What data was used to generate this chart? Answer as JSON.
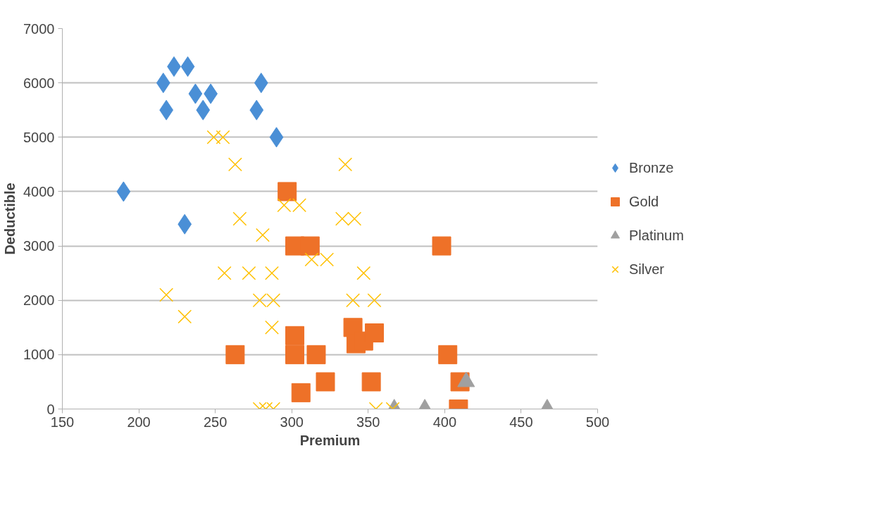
{
  "chart_data": {
    "type": "scatter",
    "xlabel": "Premium",
    "ylabel": "Deductible",
    "xlim": [
      150,
      500
    ],
    "xticks": [
      150,
      200,
      250,
      300,
      350,
      400,
      450,
      500
    ],
    "ylim": [
      0,
      7000
    ],
    "yticks": [
      0,
      1000,
      2000,
      3000,
      4000,
      5000,
      6000,
      7000
    ],
    "grid": "y",
    "legend": "right",
    "series": [
      {
        "name": "Bronze",
        "color": "#4a8fd6",
        "marker": "diamond",
        "x": [
          223,
          232,
          216,
          280,
          237,
          247,
          218,
          242,
          277,
          290,
          190,
          230
        ],
        "values": [
          6300,
          6300,
          6000,
          6000,
          5800,
          5800,
          5500,
          5500,
          5500,
          5000,
          4000,
          3400
        ]
      },
      {
        "name": "Gold",
        "color": "#ee7128",
        "marker": "square",
        "x": [
          297,
          302,
          312,
          398,
          302,
          263,
          302,
          316,
          306,
          322,
          352,
          340,
          342,
          347,
          354,
          402,
          410,
          409
        ],
        "values": [
          4000,
          3000,
          3000,
          3000,
          1350,
          1000,
          1000,
          1000,
          300,
          500,
          500,
          1500,
          1200,
          1250,
          1400,
          1000,
          500,
          0
        ]
      },
      {
        "name": "Platinum",
        "color": "#a0a0a0",
        "marker": "triangle",
        "x": [
          414,
          367,
          387,
          467
        ],
        "values": [
          500,
          0,
          0,
          0
        ]
      },
      {
        "name": "Silver",
        "color": "#ffc000",
        "marker": "cross",
        "x": [
          249,
          255,
          263,
          335,
          295,
          305,
          266,
          333,
          341,
          281,
          313,
          323,
          256,
          272,
          287,
          347,
          218,
          279,
          288,
          340,
          354,
          230,
          287,
          279,
          283,
          288,
          355,
          366
        ],
        "values": [
          5000,
          5000,
          4500,
          4500,
          3750,
          3750,
          3500,
          3500,
          3500,
          3200,
          2750,
          2750,
          2500,
          2500,
          2500,
          2500,
          2100,
          2000,
          2000,
          2000,
          2000,
          1700,
          1500,
          0,
          0,
          0,
          0,
          0
        ]
      }
    ]
  }
}
